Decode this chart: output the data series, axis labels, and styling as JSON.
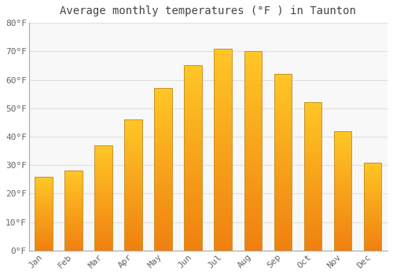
{
  "title": "Average monthly temperatures (°F ) in Taunton",
  "months": [
    "Jan",
    "Feb",
    "Mar",
    "Apr",
    "May",
    "Jun",
    "Jul",
    "Aug",
    "Sep",
    "Oct",
    "Nov",
    "Dec"
  ],
  "values": [
    26,
    28,
    37,
    46,
    57,
    65,
    71,
    70,
    62,
    52,
    42,
    31
  ],
  "bar_color_top": "#FFC726",
  "bar_color_bottom": "#F08010",
  "bar_edge_color": "#C8922A",
  "background_color": "#FFFFFF",
  "plot_bg_color": "#F8F8F8",
  "grid_color": "#E0E0E0",
  "ylim": [
    0,
    80
  ],
  "yticks": [
    0,
    10,
    20,
    30,
    40,
    50,
    60,
    70,
    80
  ],
  "ytick_labels": [
    "0°F",
    "10°F",
    "20°F",
    "30°F",
    "40°F",
    "50°F",
    "60°F",
    "70°F",
    "80°F"
  ],
  "title_fontsize": 10,
  "tick_fontsize": 8,
  "font_family": "monospace",
  "tick_color": "#666666",
  "spine_color": "#AAAAAA",
  "bar_width": 0.6
}
